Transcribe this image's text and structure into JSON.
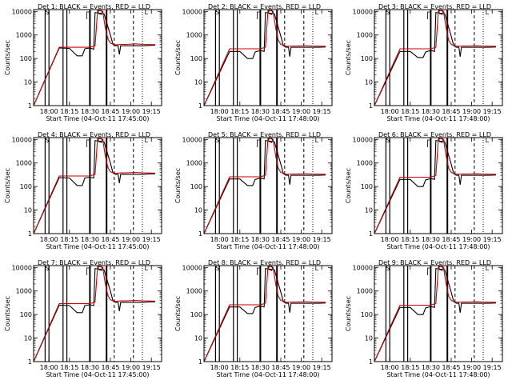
{
  "chart_data": [
    {
      "type": "line",
      "title": "Det 1: BLACK = Events, RED = LLD",
      "xlabel": "Start Time (04-Oct-11 17:45:00)",
      "ylabel": "Counts/sec",
      "x_ticks": [
        "18:00",
        "18:15",
        "18:30",
        "18:45",
        "19:00",
        "19:15"
      ],
      "y_ticks": [
        "1",
        "10",
        "100",
        "1000",
        "10000"
      ],
      "ylim": [
        1,
        12000
      ],
      "log_y": true,
      "markers": [
        "S",
        "Q",
        "L"
      ],
      "series": [
        {
          "color": "#000000",
          "x": [
            0,
            20,
            28,
            34,
            38,
            40,
            44,
            47,
            48,
            55,
            60,
            62,
            64,
            66,
            67,
            68,
            75,
            80,
            85,
            90,
            95
          ],
          "y": [
            0,
            280,
            270,
            130,
            130,
            260,
            280,
            250,
            9000,
            8000,
            1000,
            400,
            350,
            350,
            150,
            350,
            350,
            350,
            350,
            360,
            370
          ]
        },
        {
          "color": "#cc0000",
          "x": [
            0,
            20,
            34,
            38,
            40,
            44,
            48,
            50,
            52,
            54,
            56,
            58,
            60,
            64,
            68,
            72,
            80,
            85,
            95
          ],
          "y": [
            0,
            300,
            300,
            300,
            300,
            300,
            350,
            11000,
            11000,
            10000,
            2000,
            700,
            450,
            380,
            400,
            400,
            420,
            400,
            390
          ]
        }
      ]
    },
    {
      "type": "line",
      "title": "Det 2: BLACK = Events, RED = LLD",
      "xlabel": "Start Time (04-Oct-11 17:48:00)",
      "ylabel": "Counts/sec",
      "x_ticks": [
        "18:00",
        "18:15",
        "18:30",
        "18:45",
        "19:00",
        "19:15"
      ],
      "y_ticks": [
        "1",
        "10",
        "100",
        "1000",
        "10000"
      ],
      "ylim": [
        1,
        12000
      ],
      "log_y": true,
      "markers": [
        "S",
        "Q",
        "L"
      ],
      "series": [
        {
          "color": "#000000",
          "x": [
            0,
            20,
            28,
            34,
            38,
            40,
            44,
            47,
            48,
            55,
            60,
            62,
            64,
            66,
            67,
            68,
            75,
            80,
            85,
            90,
            95
          ],
          "y": [
            0,
            200,
            200,
            100,
            100,
            190,
            220,
            200,
            9000,
            8000,
            900,
            350,
            300,
            300,
            120,
            300,
            300,
            300,
            300,
            300,
            310
          ]
        },
        {
          "color": "#cc0000",
          "x": [
            0,
            20,
            34,
            38,
            40,
            44,
            48,
            50,
            52,
            54,
            56,
            58,
            60,
            64,
            68,
            72,
            80,
            85,
            95
          ],
          "y": [
            0,
            260,
            260,
            260,
            260,
            260,
            300,
            11000,
            11000,
            10000,
            2000,
            600,
            400,
            330,
            340,
            340,
            350,
            340,
            330
          ]
        }
      ]
    },
    {
      "type": "line",
      "title": "Det 3: BLACK = Events, RED = LLD",
      "xlabel": "Start Time (04-Oct-11 17:48:00)",
      "ylabel": "Counts/sec",
      "x_ticks": [
        "18:00",
        "18:15",
        "18:30",
        "18:45",
        "19:00",
        "19:15"
      ],
      "y_ticks": [
        "1",
        "10",
        "100",
        "1000",
        "10000"
      ],
      "ylim": [
        1,
        12000
      ],
      "log_y": true,
      "markers": [
        "S",
        "Q",
        "L"
      ],
      "series": [
        {
          "color": "#000000",
          "x": [
            0,
            20,
            28,
            34,
            38,
            40,
            44,
            47,
            48,
            55,
            60,
            62,
            64,
            66,
            67,
            68,
            75,
            80,
            85,
            90,
            95
          ],
          "y": [
            0,
            200,
            200,
            110,
            110,
            190,
            220,
            200,
            9000,
            8000,
            900,
            350,
            300,
            300,
            120,
            300,
            300,
            300,
            300,
            300,
            310
          ]
        },
        {
          "color": "#cc0000",
          "x": [
            0,
            20,
            34,
            38,
            40,
            44,
            48,
            50,
            52,
            54,
            56,
            58,
            60,
            64,
            68,
            72,
            80,
            85,
            95
          ],
          "y": [
            0,
            260,
            260,
            260,
            260,
            260,
            300,
            11000,
            11000,
            10000,
            2000,
            600,
            400,
            330,
            340,
            340,
            350,
            340,
            330
          ]
        }
      ]
    },
    {
      "type": "line",
      "title": "Det 4: BLACK = Events, RED = LLD",
      "xlabel": "Start Time (04-Oct-11 17:45:00)",
      "ylabel": "Counts/sec",
      "x_ticks": [
        "18:00",
        "18:15",
        "18:30",
        "18:45",
        "19:00",
        "19:15"
      ],
      "y_ticks": [
        "1",
        "10",
        "100",
        "1000",
        "10000"
      ],
      "ylim": [
        1,
        12000
      ],
      "log_y": true,
      "markers": [
        "S",
        "Q",
        "L"
      ],
      "series": [
        {
          "color": "#000000",
          "x": [
            0,
            20,
            28,
            34,
            38,
            40,
            44,
            47,
            48,
            55,
            60,
            62,
            64,
            66,
            67,
            68,
            75,
            80,
            85,
            90,
            95
          ],
          "y": [
            0,
            240,
            230,
            110,
            110,
            230,
            250,
            230,
            9000,
            8000,
            1000,
            380,
            330,
            330,
            140,
            330,
            330,
            330,
            330,
            340,
            350
          ]
        },
        {
          "color": "#cc0000",
          "x": [
            0,
            20,
            34,
            38,
            40,
            44,
            48,
            50,
            52,
            54,
            56,
            58,
            60,
            64,
            68,
            72,
            80,
            85,
            95
          ],
          "y": [
            0,
            280,
            280,
            280,
            280,
            280,
            330,
            11000,
            11000,
            10000,
            2000,
            650,
            420,
            360,
            380,
            380,
            400,
            380,
            370
          ]
        }
      ]
    },
    {
      "type": "line",
      "title": "Det 5: BLACK = Events, RED = LLD",
      "xlabel": "Start Time (04-Oct-11 17:48:00)",
      "ylabel": "Counts/sec",
      "x_ticks": [
        "18:00",
        "18:15",
        "18:30",
        "18:45",
        "19:00",
        "19:15"
      ],
      "y_ticks": [
        "1",
        "10",
        "100",
        "1000",
        "10000"
      ],
      "ylim": [
        1,
        12000
      ],
      "log_y": true,
      "markers": [
        "S",
        "Q",
        "L"
      ],
      "series": [
        {
          "color": "#000000",
          "x": [
            0,
            20,
            28,
            34,
            38,
            40,
            44,
            47,
            48,
            55,
            60,
            62,
            64,
            66,
            67,
            68,
            75,
            80,
            85,
            90,
            95
          ],
          "y": [
            0,
            210,
            210,
            110,
            110,
            200,
            230,
            210,
            9000,
            8000,
            900,
            350,
            300,
            300,
            120,
            300,
            300,
            300,
            300,
            300,
            310
          ]
        },
        {
          "color": "#cc0000",
          "x": [
            0,
            20,
            34,
            38,
            40,
            44,
            48,
            50,
            52,
            54,
            56,
            58,
            60,
            64,
            68,
            72,
            80,
            85,
            95
          ],
          "y": [
            0,
            260,
            260,
            260,
            260,
            260,
            300,
            11000,
            11000,
            10000,
            2000,
            600,
            400,
            330,
            340,
            340,
            350,
            340,
            330
          ]
        }
      ]
    },
    {
      "type": "line",
      "title": "Det 6: BLACK = Events, RED = LLD",
      "xlabel": "Start Time (04-Oct-11 17:48:00)",
      "ylabel": "Counts/sec",
      "x_ticks": [
        "18:00",
        "18:15",
        "18:30",
        "18:45",
        "19:00",
        "19:15"
      ],
      "y_ticks": [
        "1",
        "10",
        "100",
        "1000",
        "10000"
      ],
      "ylim": [
        1,
        12000
      ],
      "log_y": true,
      "markers": [
        "S",
        "Q",
        "L"
      ],
      "series": [
        {
          "color": "#000000",
          "x": [
            0,
            20,
            28,
            34,
            38,
            40,
            44,
            47,
            48,
            55,
            60,
            62,
            64,
            66,
            67,
            68,
            75,
            80,
            85,
            90,
            95
          ],
          "y": [
            0,
            200,
            200,
            100,
            100,
            190,
            220,
            200,
            9000,
            8000,
            900,
            350,
            300,
            300,
            120,
            300,
            300,
            300,
            300,
            300,
            310
          ]
        },
        {
          "color": "#cc0000",
          "x": [
            0,
            20,
            34,
            38,
            40,
            44,
            48,
            50,
            52,
            54,
            56,
            58,
            60,
            64,
            68,
            72,
            80,
            85,
            95
          ],
          "y": [
            0,
            250,
            250,
            250,
            250,
            250,
            300,
            11000,
            11000,
            10000,
            2000,
            600,
            400,
            330,
            340,
            340,
            350,
            340,
            330
          ]
        }
      ]
    },
    {
      "type": "line",
      "title": "Det 7: BLACK = Events, RED = LLD",
      "xlabel": "Start Time (04-Oct-11 17:45:00)",
      "ylabel": "Counts/sec",
      "x_ticks": [
        "18:00",
        "18:15",
        "18:30",
        "18:45",
        "19:00",
        "19:15"
      ],
      "y_ticks": [
        "1",
        "10",
        "100",
        "1000",
        "10000"
      ],
      "ylim": [
        1,
        12000
      ],
      "log_y": true,
      "markers": [
        "S",
        "Q",
        "L"
      ],
      "series": [
        {
          "color": "#000000",
          "x": [
            0,
            20,
            28,
            34,
            38,
            40,
            44,
            47,
            48,
            55,
            60,
            62,
            64,
            66,
            67,
            68,
            75,
            80,
            85,
            90,
            95
          ],
          "y": [
            0,
            250,
            240,
            120,
            120,
            240,
            260,
            240,
            9000,
            8000,
            1000,
            380,
            330,
            330,
            140,
            330,
            330,
            330,
            330,
            340,
            350
          ]
        },
        {
          "color": "#cc0000",
          "x": [
            0,
            20,
            34,
            38,
            40,
            44,
            48,
            50,
            52,
            54,
            56,
            58,
            60,
            64,
            68,
            72,
            80,
            85,
            95
          ],
          "y": [
            0,
            290,
            290,
            290,
            290,
            290,
            340,
            11000,
            11000,
            10000,
            2000,
            650,
            420,
            360,
            380,
            380,
            400,
            380,
            370
          ]
        }
      ]
    },
    {
      "type": "line",
      "title": "Det 8: BLACK = Events, RED = LLD",
      "xlabel": "Start Time (04-Oct-11 17:48:00)",
      "ylabel": "Counts/sec",
      "x_ticks": [
        "18:00",
        "18:15",
        "18:30",
        "18:45",
        "19:00",
        "19:15"
      ],
      "y_ticks": [
        "1",
        "10",
        "100",
        "1000",
        "10000"
      ],
      "ylim": [
        1,
        12000
      ],
      "log_y": true,
      "markers": [
        "S",
        "Q",
        "L"
      ],
      "series": [
        {
          "color": "#000000",
          "x": [
            0,
            20,
            28,
            34,
            38,
            40,
            44,
            47,
            48,
            55,
            60,
            62,
            64,
            66,
            67,
            68,
            75,
            80,
            85,
            90,
            95
          ],
          "y": [
            0,
            210,
            210,
            110,
            110,
            200,
            230,
            210,
            9000,
            8000,
            900,
            350,
            300,
            300,
            120,
            300,
            300,
            300,
            300,
            300,
            310
          ]
        },
        {
          "color": "#cc0000",
          "x": [
            0,
            20,
            34,
            38,
            40,
            44,
            48,
            50,
            52,
            54,
            56,
            58,
            60,
            64,
            68,
            72,
            80,
            85,
            95
          ],
          "y": [
            0,
            260,
            260,
            260,
            260,
            260,
            300,
            11000,
            11000,
            10000,
            2000,
            600,
            400,
            330,
            340,
            340,
            350,
            340,
            330
          ]
        }
      ]
    },
    {
      "type": "line",
      "title": "Det 9: BLACK = Events, RED = LLD",
      "xlabel": "Start Time (04-Oct-11 17:48:00)",
      "ylabel": "Counts/sec",
      "x_ticks": [
        "18:00",
        "18:15",
        "18:30",
        "18:45",
        "19:00",
        "19:15"
      ],
      "y_ticks": [
        "1",
        "10",
        "100",
        "1000",
        "10000"
      ],
      "ylim": [
        1,
        12000
      ],
      "log_y": true,
      "markers": [
        "S",
        "Q",
        "L"
      ],
      "series": [
        {
          "color": "#000000",
          "x": [
            0,
            20,
            28,
            34,
            38,
            40,
            44,
            47,
            48,
            55,
            60,
            62,
            64,
            66,
            67,
            68,
            75,
            80,
            85,
            90,
            95
          ],
          "y": [
            0,
            200,
            200,
            100,
            100,
            190,
            220,
            200,
            9000,
            8000,
            900,
            350,
            300,
            300,
            120,
            300,
            300,
            300,
            300,
            300,
            310
          ]
        },
        {
          "color": "#cc0000",
          "x": [
            0,
            20,
            34,
            38,
            40,
            44,
            48,
            50,
            52,
            54,
            56,
            58,
            60,
            64,
            68,
            72,
            80,
            85,
            95
          ],
          "y": [
            0,
            250,
            250,
            250,
            250,
            250,
            300,
            11000,
            11000,
            10000,
            2000,
            600,
            400,
            330,
            340,
            340,
            350,
            340,
            330
          ]
        }
      ]
    }
  ]
}
